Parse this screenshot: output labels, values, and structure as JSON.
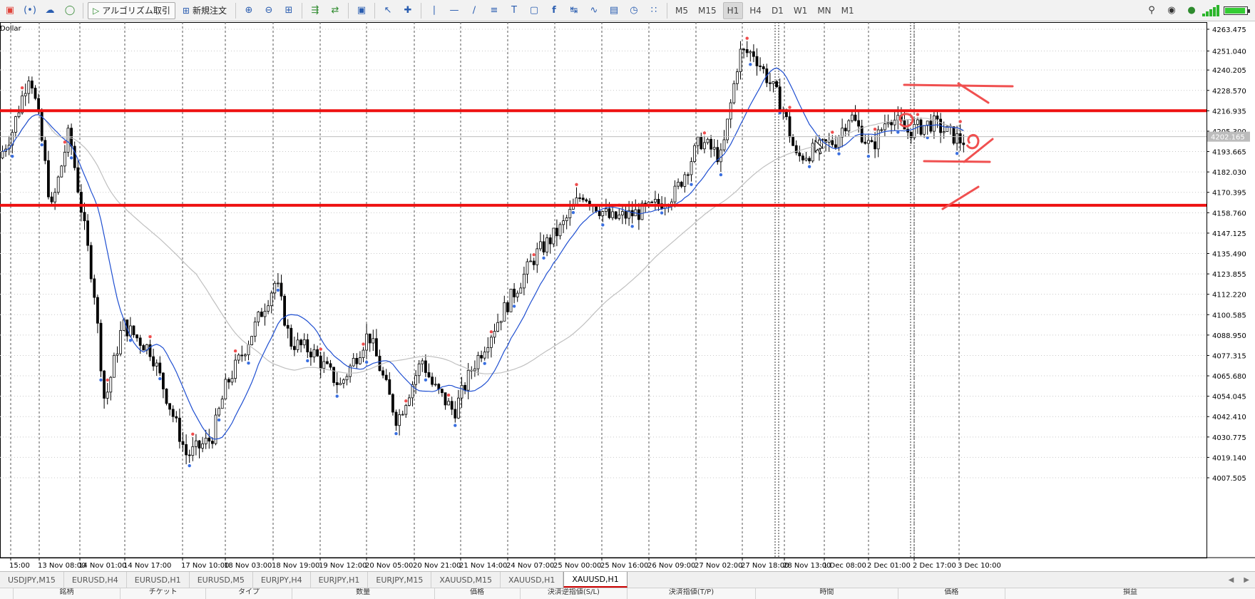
{
  "toolbar": {
    "algo_label": "アルゴリズム取引",
    "new_order_label": "新規注文",
    "timeframes": [
      "M5",
      "M15",
      "H1",
      "H4",
      "D1",
      "W1",
      "MN",
      "M1"
    ],
    "active_timeframe": "H1"
  },
  "chart": {
    "symbol_label": "Dollar",
    "price_ticks": [
      "4263.475",
      "4251.040",
      "4240.205",
      "4228.570",
      "4216.935",
      "4205.300",
      "4193.665",
      "4182.030",
      "4170.395",
      "4158.760",
      "4147.125",
      "4135.490",
      "4123.855",
      "4112.220",
      "4100.585",
      "4088.950",
      "4077.315",
      "4065.680",
      "4054.045",
      "4042.410",
      "4030.775",
      "4019.140",
      "4007.505"
    ],
    "current_price": "4202.165",
    "time_ticks": [
      "15:00",
      "13 Nov 08:00",
      "14 Nov 01:00",
      "14 Nov 17:00",
      "17 Nov 10:00",
      "18 Nov 03:00",
      "18 Nov 19:00",
      "19 Nov 12:00",
      "20 Nov 05:00",
      "20 Nov 21:00",
      "21 Nov 14:00",
      "24 Nov 07:00",
      "25 Nov 00:00",
      "25 Nov 16:00",
      "26 Nov 09:00",
      "27 Nov 02:00",
      "27 Nov 18:00",
      "28 Nov 13:00",
      "1 Dec 08:00",
      "2 Dec 01:00",
      "2 Dec 17:00",
      "3 Dec 10:00"
    ],
    "horizontal_lines": [
      4217.0,
      4163.0
    ],
    "colors": {
      "bull": "#ffffff",
      "bear": "#000000",
      "ma_fast": "#1f4fd1",
      "ma_slow": "#c0c0c0",
      "hline": "#ee1111",
      "annotation": "#f05050"
    }
  },
  "tabs": [
    "USDJPY,M15",
    "EURUSD,H4",
    "EURUSD,H1",
    "EURUSD,M5",
    "EURJPY,H4",
    "EURJPY,H1",
    "EURJPY,M15",
    "XAUUSD,M15",
    "XAUUSD,H1",
    "XAUUSD,H1"
  ],
  "active_tab": 9,
  "bottom_columns": [
    "銘柄",
    "チケット",
    "タイプ",
    "数量",
    "価格",
    "決済逆指値(S/L)",
    "決済指値(T/P)",
    "時間",
    "価格",
    "損益"
  ]
}
